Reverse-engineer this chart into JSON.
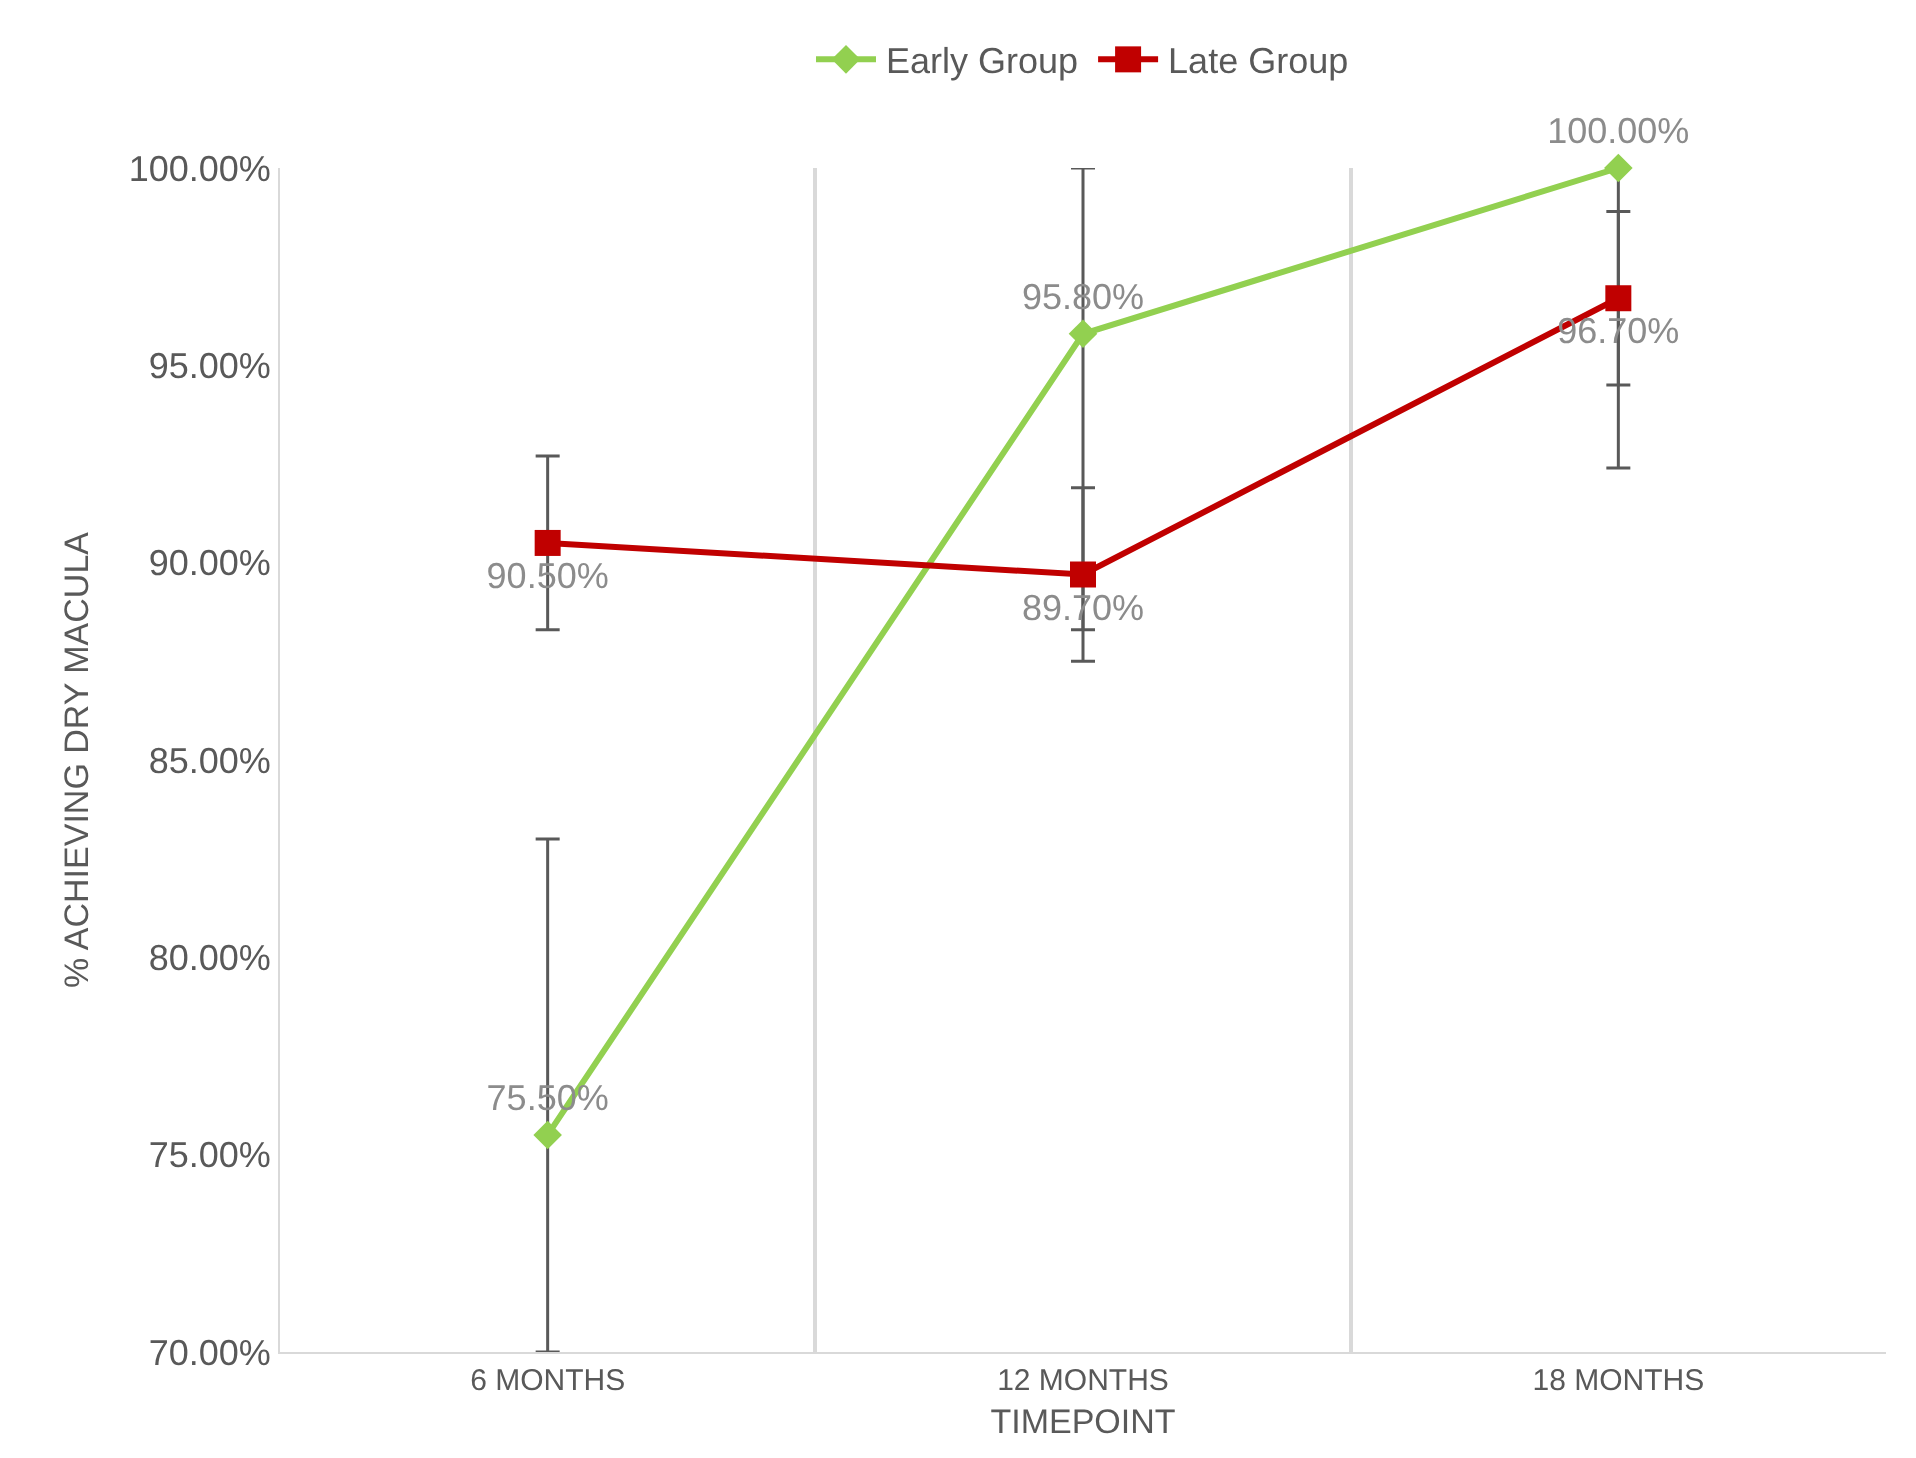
{
  "chart_data": {
    "type": "line",
    "xlabel": "TIMEPOINT",
    "ylabel": "% ACHIEVING DRY MACULA",
    "categories": [
      "6 MONTHS",
      "12 MONTHS",
      "18 MONTHS"
    ],
    "series": [
      {
        "name": "Early Group",
        "color": "#92d050",
        "marker": "diamond",
        "values": [
          75.5,
          95.8,
          100.0
        ],
        "value_labels": [
          "75.50%",
          "95.80%",
          "100.00%"
        ],
        "errors": [
          [
            70,
            83.0
          ],
          [
            88.3,
            100
          ],
          [
            92.4,
            100
          ]
        ]
      },
      {
        "name": "Late Group",
        "color": "#c00000",
        "marker": "square",
        "values": [
          90.5,
          89.7,
          96.7
        ],
        "value_labels": [
          "90.50%",
          "89.70%",
          "96.70%"
        ],
        "errors": [
          2.2,
          2.2,
          2.2
        ]
      }
    ],
    "ylim": [
      70,
      100
    ],
    "yticks": [
      {
        "value": 70,
        "label": "70.00%"
      },
      {
        "value": 75,
        "label": "75.00%"
      },
      {
        "value": 80,
        "label": "80.00%"
      },
      {
        "value": 85,
        "label": "85.00%"
      },
      {
        "value": 90,
        "label": "90.00%"
      },
      {
        "value": 95,
        "label": "95.00%"
      },
      {
        "value": 100,
        "label": "100.00%"
      }
    ],
    "grid": "x",
    "legend": "top",
    "line_style": "solid"
  }
}
